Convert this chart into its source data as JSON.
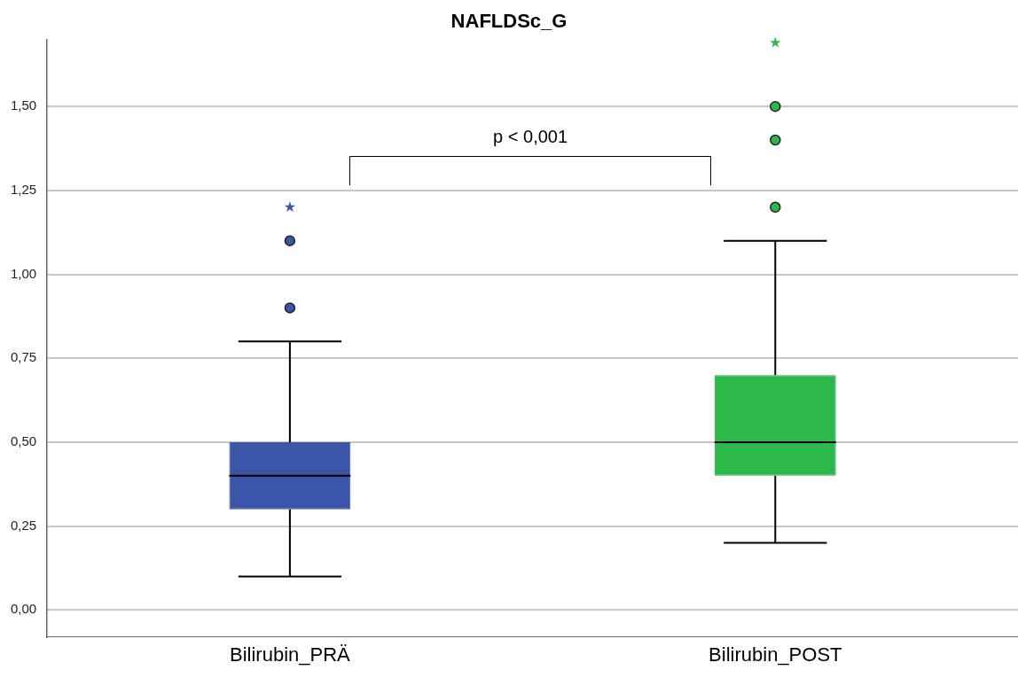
{
  "chart_data": {
    "type": "box",
    "title": "NAFLDSc_G",
    "categories": [
      "Bilirubin_PRÄ",
      "Bilirubin_POST"
    ],
    "colors": [
      "#3b56a9",
      "#2db84a"
    ],
    "boxes": [
      {
        "low": 0.1,
        "q1": 0.3,
        "median": 0.4,
        "q3": 0.5,
        "high": 0.8,
        "outliers": [
          0.9,
          1.1,
          1.2
        ]
      },
      {
        "low": 0.2,
        "q1": 0.4,
        "median": 0.5,
        "q3": 0.7,
        "high": 1.1,
        "outliers": [
          1.2,
          1.4,
          1.5,
          1.69
        ]
      }
    ],
    "ylim": [
      -0.08,
      1.7
    ],
    "yticks": [
      {
        "value": 0,
        "label": "0,00"
      },
      {
        "value": 0.25,
        "label": "0,25"
      },
      {
        "value": 0.5,
        "label": "0,50"
      },
      {
        "value": 0.75,
        "label": "0,75"
      },
      {
        "value": 1,
        "label": "1,00"
      },
      {
        "value": 1.25,
        "label": "1,25"
      },
      {
        "value": 1.5,
        "label": "1,50"
      }
    ],
    "grid": "y",
    "legend": false,
    "annotations": [
      "p < 0,001"
    ]
  }
}
